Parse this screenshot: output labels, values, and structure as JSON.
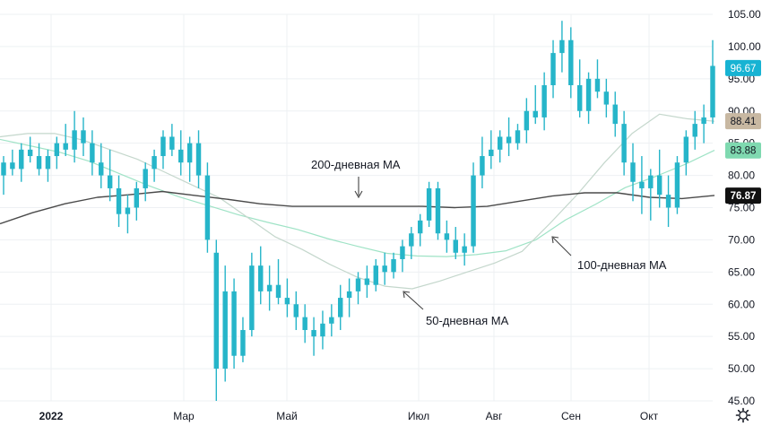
{
  "chart_data": {
    "type": "candlestick",
    "colors": {
      "candle": "#26b5c9",
      "ma50": "#c4d7cc",
      "ma100": "#9fe3c6",
      "ma200": "#4a4a4a",
      "badge_price": "#17b3d3",
      "badge_ma50": "#c8b8a2",
      "badge_ma100": "#7fd9b0",
      "badge_ma200": "#111111",
      "grid": "#eef0f3"
    },
    "grid": true,
    "ylim": [
      45,
      105
    ],
    "y_ticks": [
      "45.00",
      "50.00",
      "55.00",
      "60.00",
      "65.00",
      "70.00",
      "75.00",
      "80.00",
      "85.00",
      "90.00",
      "95.00",
      "100.00",
      "105.00"
    ],
    "x_ticks": [
      "2022",
      "Мар",
      "Май",
      "Июл",
      "Авг",
      "Сен",
      "Окт"
    ],
    "price_badges": [
      {
        "label": "96.67",
        "value": 96.67,
        "key": "price"
      },
      {
        "label": "88.41",
        "value": 88.41,
        "key": "ma50"
      },
      {
        "label": "83.88",
        "value": 83.88,
        "key": "ma100"
      },
      {
        "label": "76.87",
        "value": 76.87,
        "key": "ma200"
      }
    ],
    "annotations": [
      {
        "text": "200-дневная МА",
        "series": "ma200"
      },
      {
        "text": "100-дневная МА",
        "series": "ma100"
      },
      {
        "text": "50-дневная МА",
        "series": "ma50"
      }
    ],
    "candles": [
      [
        80,
        83,
        77,
        82
      ],
      [
        82,
        84,
        80,
        81
      ],
      [
        81,
        85,
        79,
        84
      ],
      [
        84,
        86,
        82,
        83
      ],
      [
        83,
        85,
        80,
        81
      ],
      [
        81,
        84,
        79,
        83
      ],
      [
        83,
        86,
        81,
        85
      ],
      [
        85,
        88,
        83,
        84
      ],
      [
        84,
        90,
        82,
        87
      ],
      [
        87,
        89,
        83,
        85
      ],
      [
        85,
        87,
        80,
        82
      ],
      [
        82,
        85,
        78,
        80
      ],
      [
        80,
        84,
        76,
        78
      ],
      [
        78,
        80,
        72,
        74
      ],
      [
        74,
        77,
        71,
        75
      ],
      [
        75,
        79,
        73,
        78
      ],
      [
        78,
        82,
        76,
        81
      ],
      [
        81,
        84,
        79,
        83
      ],
      [
        83,
        87,
        81,
        86
      ],
      [
        86,
        88,
        83,
        84
      ],
      [
        84,
        87,
        80,
        82
      ],
      [
        82,
        86,
        79,
        85
      ],
      [
        85,
        87,
        78,
        80
      ],
      [
        80,
        82,
        68,
        70
      ],
      [
        68,
        70,
        45,
        50
      ],
      [
        50,
        66,
        48,
        62
      ],
      [
        62,
        64,
        50,
        52
      ],
      [
        52,
        58,
        51,
        56
      ],
      [
        56,
        68,
        55,
        66
      ],
      [
        66,
        69,
        60,
        62
      ],
      [
        62,
        66,
        59,
        63
      ],
      [
        63,
        67,
        60,
        61
      ],
      [
        61,
        64,
        58,
        60
      ],
      [
        60,
        62,
        56,
        58
      ],
      [
        58,
        60,
        54,
        56
      ],
      [
        56,
        58,
        52,
        55
      ],
      [
        55,
        59,
        53,
        57
      ],
      [
        57,
        60,
        55,
        58
      ],
      [
        58,
        63,
        56,
        61
      ],
      [
        61,
        64,
        58,
        62
      ],
      [
        62,
        65,
        60,
        64
      ],
      [
        64,
        66,
        61,
        63
      ],
      [
        63,
        67,
        62,
        66
      ],
      [
        66,
        68,
        63,
        65
      ],
      [
        65,
        68,
        64,
        67
      ],
      [
        67,
        70,
        65,
        69
      ],
      [
        69,
        72,
        67,
        71
      ],
      [
        71,
        74,
        69,
        73
      ],
      [
        73,
        79,
        72,
        78
      ],
      [
        78,
        79,
        70,
        71
      ],
      [
        71,
        73,
        68,
        70
      ],
      [
        70,
        72,
        67,
        68
      ],
      [
        68,
        71,
        66,
        69
      ],
      [
        69,
        82,
        68,
        80
      ],
      [
        80,
        86,
        78,
        83
      ],
      [
        83,
        87,
        81,
        84
      ],
      [
        84,
        87,
        82,
        86
      ],
      [
        86,
        89,
        83,
        85
      ],
      [
        85,
        88,
        84,
        87
      ],
      [
        87,
        92,
        85,
        90
      ],
      [
        90,
        94,
        88,
        89
      ],
      [
        89,
        96,
        87,
        94
      ],
      [
        94,
        101,
        92,
        99
      ],
      [
        99,
        104,
        96,
        101
      ],
      [
        101,
        103,
        92,
        94
      ],
      [
        94,
        98,
        89,
        90
      ],
      [
        90,
        96,
        88,
        95
      ],
      [
        95,
        98,
        92,
        93
      ],
      [
        93,
        95,
        89,
        91
      ],
      [
        91,
        93,
        86,
        88
      ],
      [
        88,
        90,
        80,
        82
      ],
      [
        82,
        85,
        76,
        79
      ],
      [
        79,
        83,
        74,
        78
      ],
      [
        78,
        81,
        73,
        80
      ],
      [
        80,
        84,
        75,
        77
      ],
      [
        77,
        80,
        72,
        75
      ],
      [
        75,
        83,
        74,
        82
      ],
      [
        82,
        87,
        80,
        86
      ],
      [
        86,
        90,
        84,
        88
      ],
      [
        88,
        91,
        85,
        89
      ],
      [
        89,
        101,
        88,
        97
      ]
    ],
    "ma50": [
      86,
      86.5,
      86.5,
      85.5,
      84,
      82.5,
      80.5,
      78.5,
      76.5,
      73.5,
      70.5,
      68.5,
      66.2,
      64.2,
      62.8,
      62.4,
      63.6,
      65,
      66.4,
      68.2,
      72.5,
      77,
      82,
      86.5,
      89.5,
      88.8,
      88.4
    ],
    "ma100": [
      85.6,
      84.6,
      83.6,
      82.2,
      80.3,
      78.4,
      76.7,
      75.3,
      73.9,
      72.7,
      71.6,
      70.2,
      69,
      67.9,
      67.5,
      67.4,
      67.7,
      68.3,
      70,
      73.1,
      75.5,
      78.1,
      79.8,
      81.7,
      83.9
    ],
    "ma200": [
      72.5,
      74.2,
      75.6,
      76.6,
      77,
      77.5,
      76.9,
      76.3,
      75.6,
      75.2,
      75.2,
      75.2,
      75.2,
      75.2,
      75,
      75.2,
      76,
      76.8,
      77.3,
      77.3,
      76.6,
      76.4,
      76.9
    ]
  }
}
